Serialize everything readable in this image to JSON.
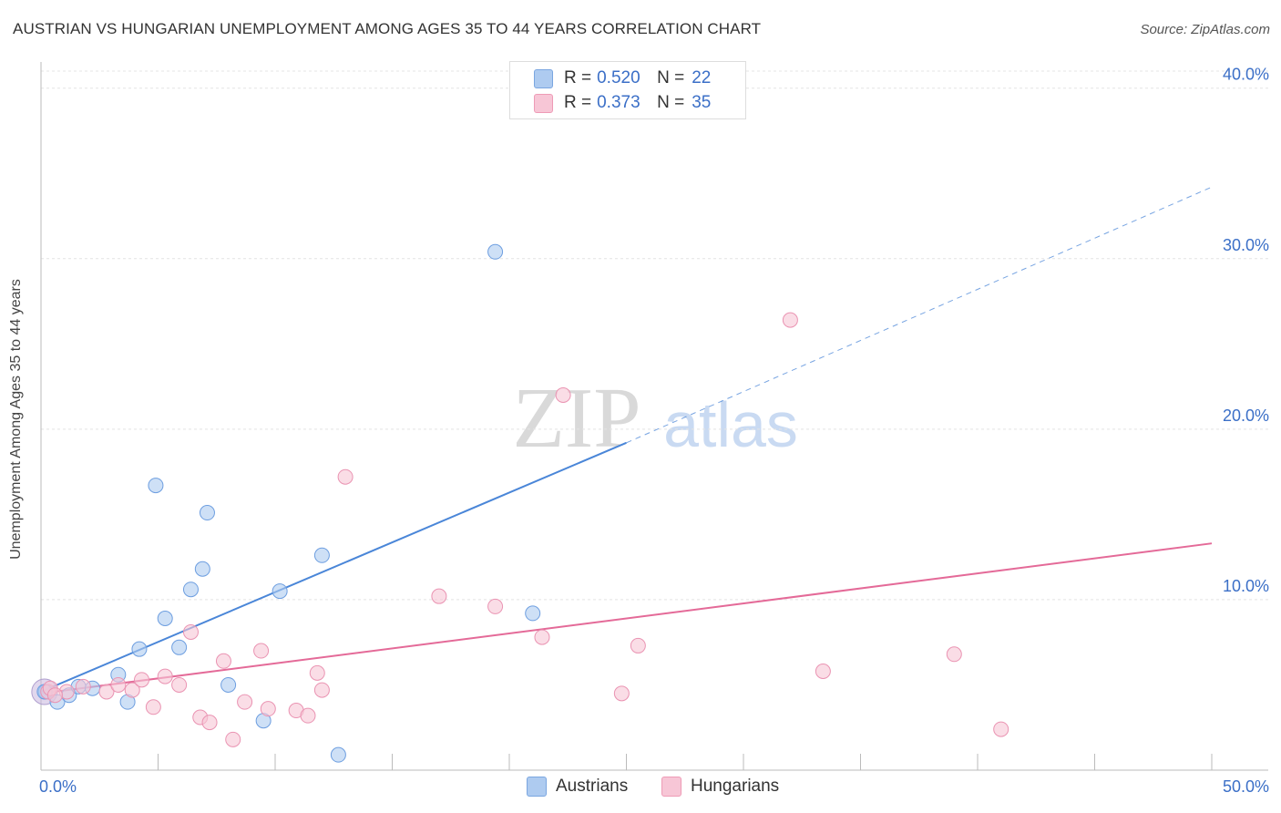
{
  "title": "AUSTRIAN VS HUNGARIAN UNEMPLOYMENT AMONG AGES 35 TO 44 YEARS CORRELATION CHART",
  "source": "Source: ZipAtlas.com",
  "watermark": {
    "zip": "ZIP",
    "atlas": "atlas"
  },
  "legend_top": [
    {
      "r_label": "R =",
      "r_value": "0.520",
      "n_label": "N =",
      "n_value": "22",
      "color": "#aecbf0",
      "border": "#7aa6e0"
    },
    {
      "r_label": "R =",
      "r_value": "0.373",
      "n_label": "N =",
      "n_value": "35",
      "color": "#f7c6d6",
      "border": "#ee9bb6"
    }
  ],
  "legend_bottom": [
    {
      "label": "Austrians",
      "color": "#aecbf0",
      "border": "#7aa6e0"
    },
    {
      "label": "Hungarians",
      "color": "#f7c6d6",
      "border": "#ee9bb6"
    }
  ],
  "chart_data": {
    "type": "scatter",
    "title": "AUSTRIAN VS HUNGARIAN UNEMPLOYMENT AMONG AGES 35 TO 44 YEARS CORRELATION CHART",
    "xlabel": "",
    "ylabel": "Unemployment Among Ages 35 to 44 years",
    "xlim": [
      0,
      50
    ],
    "ylim": [
      0,
      41
    ],
    "x_tick_labels": [
      "0.0%",
      "50.0%"
    ],
    "y_ticks": [
      10,
      20,
      30,
      40
    ],
    "y_tick_labels": [
      "10.0%",
      "20.0%",
      "30.0%",
      "40.0%"
    ],
    "grid": true,
    "series": [
      {
        "name": "Austrians",
        "color": "#4a86d8",
        "fill": "#aecbf0",
        "points": [
          [
            0.2,
            4.6
          ],
          [
            0.7,
            4.0
          ],
          [
            1.2,
            4.4
          ],
          [
            1.6,
            4.9
          ],
          [
            2.2,
            4.8
          ],
          [
            3.3,
            5.6
          ],
          [
            3.7,
            4.0
          ],
          [
            4.2,
            7.1
          ],
          [
            4.9,
            16.7
          ],
          [
            5.3,
            8.9
          ],
          [
            5.9,
            7.2
          ],
          [
            6.4,
            10.6
          ],
          [
            6.9,
            11.8
          ],
          [
            7.1,
            15.1
          ],
          [
            8.0,
            5.0
          ],
          [
            9.5,
            2.9
          ],
          [
            10.2,
            10.5
          ],
          [
            12.0,
            12.6
          ],
          [
            12.7,
            0.9
          ],
          [
            19.4,
            30.4
          ],
          [
            21.0,
            9.2
          ],
          [
            0.15,
            4.6
          ]
        ],
        "trend": {
          "x0": 0.0,
          "y0": 4.6,
          "x1_solid": 25.0,
          "y1_solid": 19.2,
          "x1_dash": 50.0,
          "y1_dash": 34.2
        }
      },
      {
        "name": "Hungarians",
        "color": "#e46a98",
        "fill": "#f7c6d6",
        "points": [
          [
            0.3,
            4.6
          ],
          [
            1.1,
            4.6
          ],
          [
            1.8,
            4.9
          ],
          [
            2.8,
            4.6
          ],
          [
            3.3,
            5.0
          ],
          [
            3.9,
            4.7
          ],
          [
            4.3,
            5.3
          ],
          [
            4.8,
            3.7
          ],
          [
            5.3,
            5.5
          ],
          [
            5.9,
            5.0
          ],
          [
            6.4,
            8.1
          ],
          [
            6.8,
            3.1
          ],
          [
            7.2,
            2.8
          ],
          [
            7.8,
            6.4
          ],
          [
            8.2,
            1.8
          ],
          [
            8.7,
            4.0
          ],
          [
            9.4,
            7.0
          ],
          [
            9.7,
            3.6
          ],
          [
            10.9,
            3.5
          ],
          [
            11.4,
            3.2
          ],
          [
            11.8,
            5.7
          ],
          [
            12.0,
            4.7
          ],
          [
            13.0,
            17.2
          ],
          [
            17.0,
            10.2
          ],
          [
            19.4,
            9.6
          ],
          [
            21.4,
            7.8
          ],
          [
            22.3,
            22.0
          ],
          [
            24.8,
            4.5
          ],
          [
            25.5,
            7.3
          ],
          [
            32.0,
            26.4
          ],
          [
            33.4,
            5.8
          ],
          [
            39.0,
            6.8
          ],
          [
            41.0,
            2.4
          ],
          [
            0.4,
            4.8
          ],
          [
            0.6,
            4.4
          ]
        ],
        "trend": {
          "x0": 0.0,
          "y0": 4.5,
          "x1": 50.0,
          "y1": 13.3
        }
      }
    ]
  }
}
